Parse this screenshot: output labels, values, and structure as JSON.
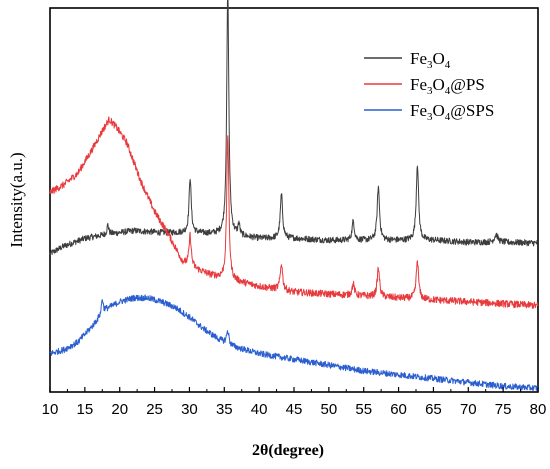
{
  "chart_data": {
    "type": "line",
    "title": "",
    "xlabel": "2θ(degree)",
    "ylabel": "Intensity(a.u.)",
    "xlim": [
      10,
      80
    ],
    "ylim": [
      0,
      100
    ],
    "x_ticks": [
      10,
      15,
      20,
      25,
      30,
      35,
      40,
      45,
      50,
      55,
      60,
      65,
      70,
      75,
      80
    ],
    "y_ticks_shown": false,
    "grid": false,
    "legend_position": "top-right",
    "series": [
      {
        "name": "Fe3O4",
        "legend_base": [
          "Fe",
          "3",
          "O",
          "4",
          ""
        ],
        "color": "#3d3d3d",
        "baseline": [
          [
            10,
            36
          ],
          [
            12,
            38
          ],
          [
            15,
            40
          ],
          [
            18,
            41
          ],
          [
            22,
            42
          ],
          [
            26,
            41.5
          ],
          [
            30,
            41.5
          ],
          [
            35,
            41
          ],
          [
            40,
            40
          ],
          [
            45,
            40
          ],
          [
            50,
            39.5
          ],
          [
            55,
            39.5
          ],
          [
            60,
            39.5
          ],
          [
            65,
            39.5
          ],
          [
            70,
            39
          ],
          [
            75,
            39
          ],
          [
            80,
            38.8
          ]
        ],
        "peaks": [
          [
            18.3,
            2.5,
            0.15
          ],
          [
            30.1,
            14.5,
            0.18
          ],
          [
            35.5,
            64,
            0.18
          ],
          [
            37.1,
            3,
            0.15
          ],
          [
            43.2,
            11.5,
            0.2
          ],
          [
            53.5,
            5,
            0.2
          ],
          [
            57.1,
            14,
            0.2
          ],
          [
            62.7,
            20,
            0.2
          ],
          [
            74.0,
            2,
            0.3
          ]
        ],
        "noise": 0.8
      },
      {
        "name": "Fe3O4@PS",
        "legend_base": [
          "Fe",
          "3",
          "O",
          "4",
          "@PS"
        ],
        "color": "#e8393d",
        "baseline": [
          [
            10,
            52
          ],
          [
            12,
            54
          ],
          [
            14,
            57
          ],
          [
            16,
            63
          ],
          [
            17.5,
            68
          ],
          [
            18.5,
            71
          ],
          [
            19.5,
            69
          ],
          [
            21,
            65
          ],
          [
            23,
            55
          ],
          [
            25,
            47
          ],
          [
            27,
            41
          ],
          [
            29,
            34
          ],
          [
            31,
            32
          ],
          [
            33,
            30.5
          ],
          [
            35,
            29.5
          ],
          [
            40,
            27.5
          ],
          [
            45,
            26
          ],
          [
            50,
            25.5
          ],
          [
            55,
            25
          ],
          [
            60,
            24.5
          ],
          [
            65,
            24
          ],
          [
            70,
            23.5
          ],
          [
            75,
            23
          ],
          [
            80,
            22.5
          ]
        ],
        "peaks": [
          [
            30.1,
            8,
            0.18
          ],
          [
            35.5,
            38,
            0.18
          ],
          [
            43.2,
            7,
            0.2
          ],
          [
            53.5,
            3,
            0.2
          ],
          [
            57.1,
            7.5,
            0.2
          ],
          [
            62.7,
            10,
            0.2
          ]
        ],
        "noise": 0.9
      },
      {
        "name": "Fe3O4@SPS",
        "legend_base": [
          "Fe",
          "3",
          "O",
          "4",
          "@SPS"
        ],
        "color": "#2b5fcf",
        "baseline": [
          [
            10,
            10
          ],
          [
            12,
            11
          ],
          [
            14,
            13
          ],
          [
            16,
            17
          ],
          [
            18,
            21.5
          ],
          [
            20,
            23.5
          ],
          [
            22,
            24.5
          ],
          [
            24,
            24.5
          ],
          [
            26,
            23.5
          ],
          [
            28,
            22
          ],
          [
            30,
            19.5
          ],
          [
            32,
            16.5
          ],
          [
            34,
            14
          ],
          [
            36,
            12
          ],
          [
            40,
            10
          ],
          [
            45,
            8.5
          ],
          [
            50,
            7
          ],
          [
            55,
            5.5
          ],
          [
            60,
            4.5
          ],
          [
            65,
            3.5
          ],
          [
            70,
            2.5
          ],
          [
            75,
            1.5
          ],
          [
            80,
            1
          ]
        ],
        "peaks": [
          [
            17.5,
            4,
            0.15
          ],
          [
            35.5,
            3.5,
            0.2
          ]
        ],
        "noise": 0.8
      }
    ]
  }
}
